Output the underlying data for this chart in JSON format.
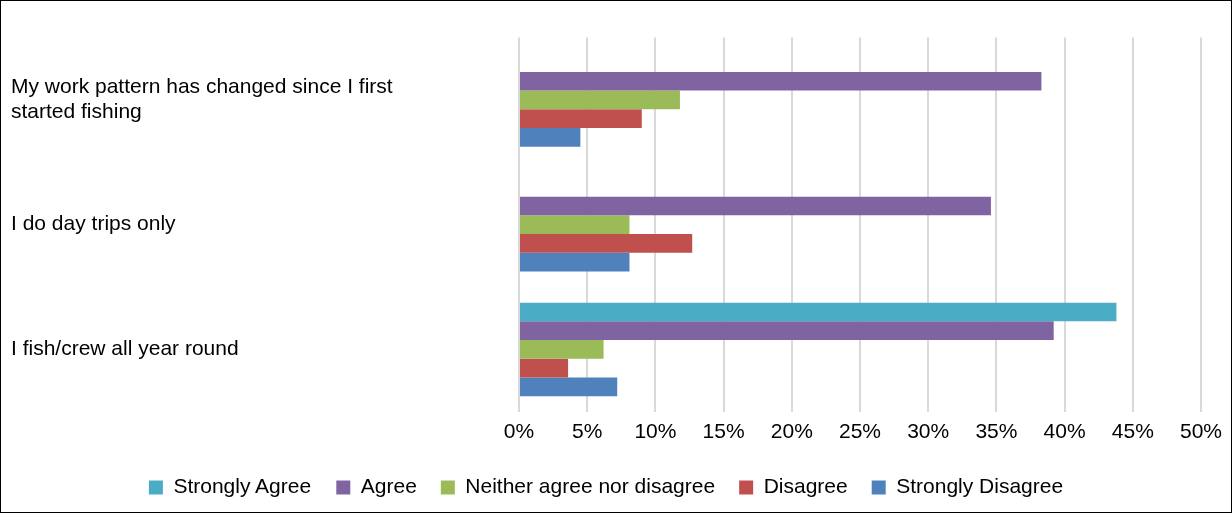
{
  "chart_data": {
    "type": "bar",
    "orientation": "horizontal",
    "categories": [
      "My work pattern has changed since I first started fishing",
      "I do day trips only",
      "I fish/crew all year round"
    ],
    "series": [
      {
        "name": "Strongly Agree",
        "color": "#4bacc6",
        "values": [
          0,
          0,
          43.8
        ]
      },
      {
        "name": "Agree",
        "color": "#8064a2",
        "values": [
          38.3,
          34.6,
          39.2
        ]
      },
      {
        "name": "Neither agree nor disagree",
        "color": "#9bbb59",
        "values": [
          11.8,
          8.1,
          6.2
        ]
      },
      {
        "name": "Disagree",
        "color": "#c0504d",
        "values": [
          9.0,
          12.7,
          3.6
        ]
      },
      {
        "name": "Strongly Disagree",
        "color": "#4f81bd",
        "values": [
          4.5,
          8.1,
          7.2
        ]
      }
    ],
    "xlim": [
      0,
      50
    ],
    "xticks": [
      {
        "value": 0,
        "label": "0%"
      },
      {
        "value": 5,
        "label": "5%"
      },
      {
        "value": 10,
        "label": "10%"
      },
      {
        "value": 15,
        "label": "15%"
      },
      {
        "value": 20,
        "label": "20%"
      },
      {
        "value": 25,
        "label": "25%"
      },
      {
        "value": 30,
        "label": "30%"
      },
      {
        "value": 35,
        "label": "35%"
      },
      {
        "value": 40,
        "label": "40%"
      },
      {
        "value": 45,
        "label": "45%"
      },
      {
        "value": 50,
        "label": "50%"
      }
    ],
    "grid": "x",
    "legend": "bottom"
  }
}
